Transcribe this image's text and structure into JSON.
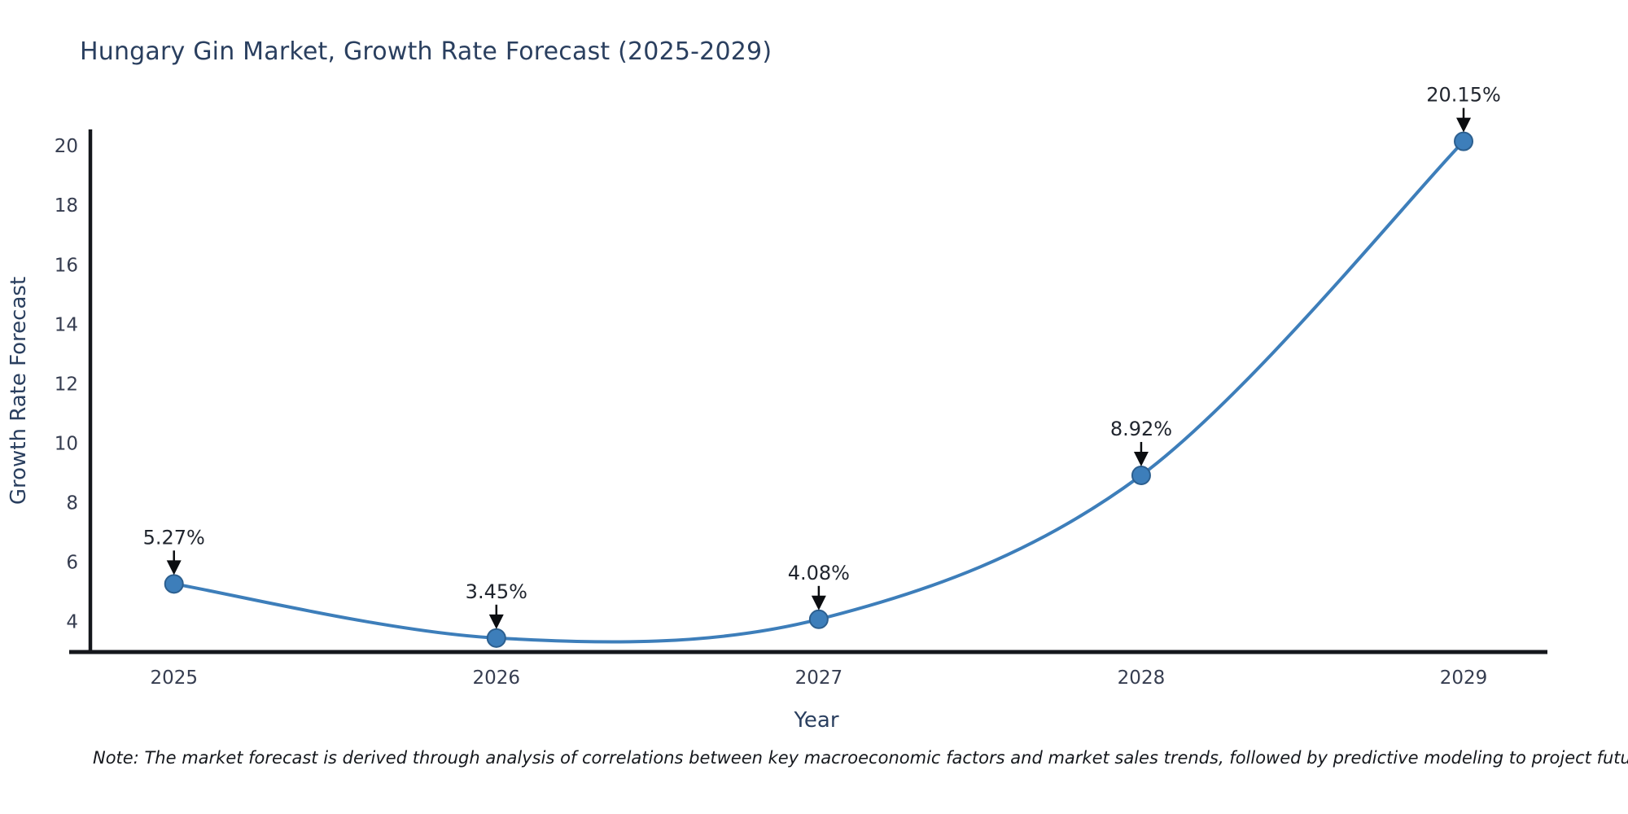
{
  "title": {
    "text": "Hungary Gin Market, Growth Rate Forecast (2025-2029)",
    "color": "#2a3f5f"
  },
  "note": {
    "text": "Note: The market forecast is derived through analysis of correlations between key macroeconomic factors and market sales trends, followed by predictive modeling to project future sales."
  },
  "chart_data": {
    "type": "line",
    "title": "Hungary Gin Market, Growth Rate Forecast (2025-2029)",
    "xlabel": "Year",
    "ylabel": "Growth Rate Forecast",
    "x": [
      2025,
      2026,
      2027,
      2028,
      2029
    ],
    "categories": [
      "2025",
      "2026",
      "2027",
      "2028",
      "2029"
    ],
    "series": [
      {
        "name": "Growth Rate Forecast",
        "values": [
          5.27,
          3.45,
          4.08,
          8.92,
          20.15
        ]
      }
    ],
    "point_labels": [
      "5.27%",
      "3.45%",
      "4.08%",
      "8.92%",
      "20.15%"
    ],
    "yticks": [
      4,
      6,
      8,
      10,
      12,
      14,
      16,
      18,
      20
    ],
    "xlim": [
      2024.675,
      2029.26
    ],
    "ylim": [
      2.98,
      20.55
    ],
    "line_shape": "spline",
    "grid": false,
    "legend_position": "none",
    "annotations_style": "value labels with downward black arrows above each marker",
    "colors": {
      "line": "#3d7eba",
      "marker_fill": "#3d7eba",
      "marker_edge": "#2c5f8f",
      "axis_line": "#15171c",
      "tick_label": "#363d50",
      "annotation_text": "#20252e",
      "arrow": "#0b0d10"
    }
  }
}
